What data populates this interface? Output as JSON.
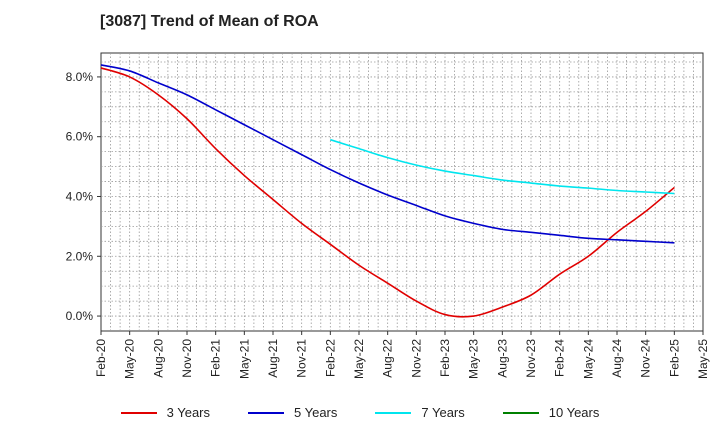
{
  "chart_data": {
    "type": "line",
    "title": "[3087]  Trend of Mean of ROA",
    "xlabel": "",
    "ylabel": "",
    "ylim": [
      -0.5,
      8.8
    ],
    "yticks": [
      0.0,
      2.0,
      4.0,
      6.0,
      8.0
    ],
    "ytick_labels": [
      "0.0%",
      "2.0%",
      "4.0%",
      "6.0%",
      "8.0%"
    ],
    "x_start": "Feb-20",
    "x_end": "May-25",
    "categories": [
      "Feb-20",
      "May-20",
      "Aug-20",
      "Nov-20",
      "Feb-21",
      "May-21",
      "Aug-21",
      "Nov-21",
      "Feb-22",
      "May-22",
      "Aug-22",
      "Nov-22",
      "Feb-23",
      "May-23",
      "Aug-23",
      "Nov-23",
      "Feb-24",
      "May-24",
      "Aug-24",
      "Nov-24",
      "Feb-25",
      "May-25"
    ],
    "grid": true,
    "legend_position": "bottom",
    "series": [
      {
        "name": "3 Years",
        "color": "#e00000",
        "x": [
          0,
          1,
          2,
          3,
          4,
          5,
          6,
          7,
          8,
          9,
          10,
          11,
          12,
          13,
          14,
          15,
          16,
          17,
          18,
          19,
          20
        ],
        "values": [
          8.3,
          8.0,
          7.4,
          6.6,
          5.6,
          4.7,
          3.9,
          3.1,
          2.4,
          1.7,
          1.1,
          0.5,
          0.05,
          0.0,
          0.3,
          0.7,
          1.4,
          2.0,
          2.8,
          3.5,
          4.3
        ]
      },
      {
        "name": "5 Years",
        "color": "#0000cc",
        "x": [
          0,
          1,
          2,
          3,
          4,
          5,
          6,
          7,
          8,
          9,
          10,
          11,
          12,
          13,
          14,
          15,
          16,
          17,
          18,
          19,
          20
        ],
        "values": [
          8.4,
          8.2,
          7.8,
          7.4,
          6.9,
          6.4,
          5.9,
          5.4,
          4.9,
          4.45,
          4.05,
          3.7,
          3.35,
          3.1,
          2.9,
          2.8,
          2.7,
          2.6,
          2.55,
          2.5,
          2.45
        ]
      },
      {
        "name": "7 Years",
        "color": "#00e5ee",
        "x": [
          8,
          9,
          10,
          11,
          12,
          13,
          14,
          15,
          16,
          17,
          18,
          19,
          20
        ],
        "values": [
          5.9,
          5.6,
          5.3,
          5.05,
          4.85,
          4.7,
          4.55,
          4.45,
          4.35,
          4.28,
          4.2,
          4.15,
          4.1
        ]
      },
      {
        "name": "10 Years",
        "color": "#008000",
        "x": [],
        "values": []
      }
    ]
  }
}
